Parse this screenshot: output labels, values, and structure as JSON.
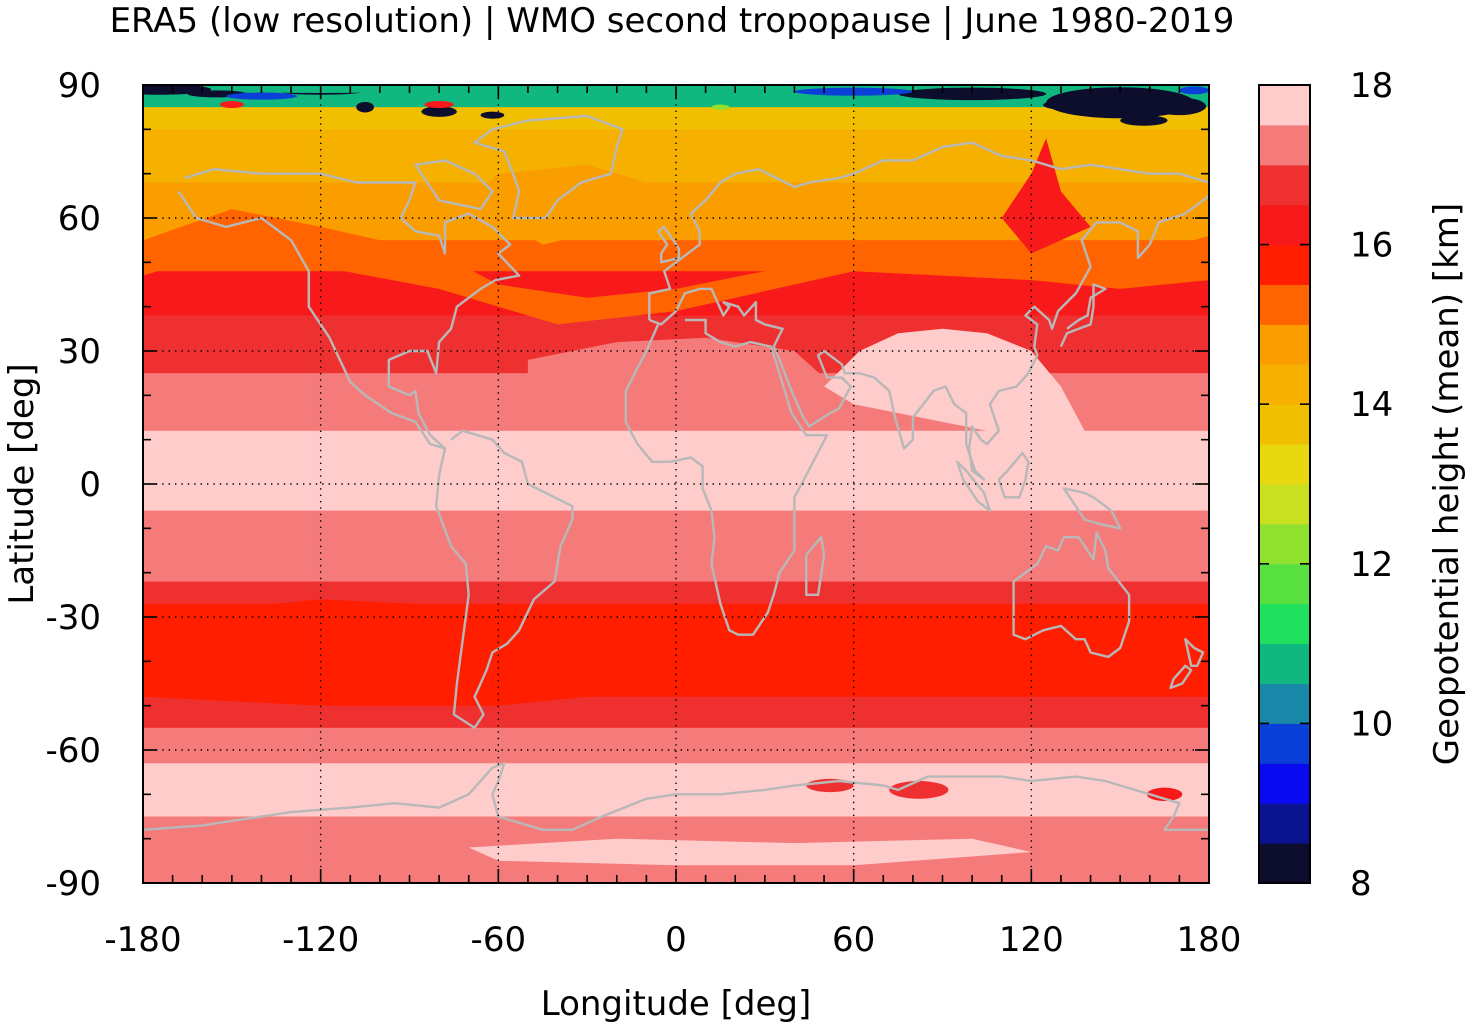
{
  "chart_data": {
    "type": "heatmap",
    "title": "ERA5 (low resolution) | WMO second tropopause | June 1980-2019",
    "xlabel": "Longitude [deg]",
    "ylabel": "Latitude [deg]",
    "xlim": [
      -180,
      180
    ],
    "ylim": [
      -90,
      90
    ],
    "x_ticks": [
      -180,
      -120,
      -60,
      0,
      60,
      120,
      180
    ],
    "y_ticks": [
      90,
      60,
      30,
      0,
      -30,
      -60,
      -90
    ],
    "x_tick_labels": [
      "-180",
      "-120",
      "-60",
      "0",
      "60",
      "120",
      "180"
    ],
    "y_tick_labels": [
      "90",
      "60",
      "30",
      "0",
      "-30",
      "-60",
      "-90"
    ],
    "grid": "dotted",
    "colorbar": {
      "label": "Geopotential height (mean) [km]",
      "range": [
        8,
        18
      ],
      "ticks": [
        18,
        16,
        14,
        12,
        10,
        8
      ],
      "tick_labels": [
        "18",
        "16",
        "14",
        "12",
        "10",
        "8"
      ],
      "levels_low_to_high": [
        "#0d0d2e",
        "#0a1490",
        "#0a0af0",
        "#0a40d8",
        "#1a88a8",
        "#10b880",
        "#20e060",
        "#58e040",
        "#90e030",
        "#c8e020",
        "#e8d810",
        "#f0c000",
        "#f5b000",
        "#fa9e00",
        "#ff6400",
        "#ff1e00",
        "#f81a1a",
        "#ef3030",
        "#f57a7a",
        "#ffcccc"
      ]
    },
    "zonal_bands": [
      {
        "lat_min": 85,
        "lat_max": 90,
        "level": 5
      },
      {
        "lat_min": 80,
        "lat_max": 85,
        "level": 11
      },
      {
        "lat_min": 68,
        "lat_max": 80,
        "level": 12
      },
      {
        "lat_min": 55,
        "lat_max": 68,
        "level": 13
      },
      {
        "lat_min": 48,
        "lat_max": 55,
        "level": 14
      },
      {
        "lat_min": 38,
        "lat_max": 48,
        "level": 16
      },
      {
        "lat_min": 25,
        "lat_max": 38,
        "level": 17
      },
      {
        "lat_min": 12,
        "lat_max": 25,
        "level": 18
      },
      {
        "lat_min": -6,
        "lat_max": 12,
        "level": 19
      },
      {
        "lat_min": -22,
        "lat_max": -6,
        "level": 18
      },
      {
        "lat_min": -27,
        "lat_max": -22,
        "level": 17
      },
      {
        "lat_min": -48,
        "lat_max": -27,
        "level": 15
      },
      {
        "lat_min": -55,
        "lat_max": -48,
        "level": 17
      },
      {
        "lat_min": -63,
        "lat_max": -55,
        "level": 18
      },
      {
        "lat_min": -75,
        "lat_max": -63,
        "level": 19
      },
      {
        "lat_min": -90,
        "lat_max": -75,
        "level": 18
      }
    ]
  }
}
